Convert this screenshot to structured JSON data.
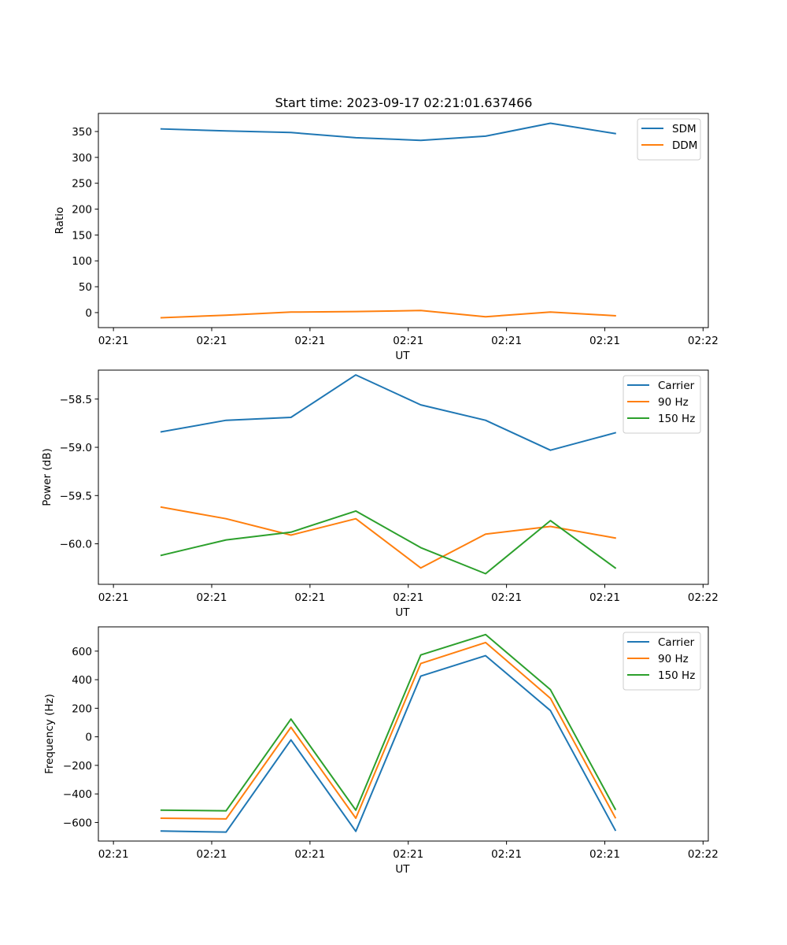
{
  "figure_title": "Start time: 2023-09-17 02:21:01.637466",
  "chart_data": [
    {
      "type": "line",
      "title": "Start time: 2023-09-17 02:21:01.637466",
      "xlabel": "UT",
      "ylabel": "Ratio",
      "xlim": [
        -0.23,
        9.08
      ],
      "ylim": [
        -29,
        385
      ],
      "x": [
        0.73,
        1.72,
        2.71,
        3.7,
        4.69,
        5.68,
        6.67,
        7.66
      ],
      "xticks": [
        0,
        1.5,
        3,
        4.5,
        6,
        7.5,
        9
      ],
      "xtick_labels": [
        "02:21",
        "02:21",
        "02:21",
        "02:21",
        "02:21",
        "02:21",
        "02:22"
      ],
      "yticks": [
        0,
        50,
        100,
        150,
        200,
        250,
        300,
        350
      ],
      "ytick_labels": [
        "0",
        "50",
        "100",
        "150",
        "200",
        "250",
        "300",
        "350"
      ],
      "legend_position": "top-right",
      "series": [
        {
          "name": "SDM",
          "color": "#1f77b4",
          "values": [
            355,
            351,
            348,
            338,
            333,
            341,
            366,
            346
          ]
        },
        {
          "name": "DDM",
          "color": "#ff7f0e",
          "values": [
            -10,
            -5,
            1,
            2,
            4,
            -8,
            1,
            -6
          ]
        }
      ]
    },
    {
      "type": "line",
      "xlabel": "UT",
      "ylabel": "Power (dB)",
      "xlim": [
        -0.23,
        9.08
      ],
      "ylim": [
        -60.42,
        -58.2
      ],
      "x": [
        0.73,
        1.72,
        2.71,
        3.7,
        4.69,
        5.68,
        6.67,
        7.66
      ],
      "xticks": [
        0,
        1.5,
        3,
        4.5,
        6,
        7.5,
        9
      ],
      "xtick_labels": [
        "02:21",
        "02:21",
        "02:21",
        "02:21",
        "02:21",
        "02:21",
        "02:22"
      ],
      "yticks": [
        -60.0,
        -59.5,
        -59.0,
        -58.5
      ],
      "ytick_labels": [
        "−60.0",
        "−59.5",
        "−59.0",
        "−58.5"
      ],
      "legend_position": "top-right",
      "series": [
        {
          "name": "Carrier",
          "color": "#1f77b4",
          "values": [
            -58.84,
            -58.72,
            -58.69,
            -58.25,
            -58.56,
            -58.72,
            -59.03,
            -58.85
          ]
        },
        {
          "name": "90 Hz",
          "color": "#ff7f0e",
          "values": [
            -59.62,
            -59.74,
            -59.91,
            -59.74,
            -60.25,
            -59.9,
            -59.82,
            -59.94
          ]
        },
        {
          "name": "150 Hz",
          "color": "#2ca02c",
          "values": [
            -60.12,
            -59.96,
            -59.88,
            -59.66,
            -60.04,
            -60.31,
            -59.76,
            -60.25
          ]
        }
      ]
    },
    {
      "type": "line",
      "xlabel": "UT",
      "ylabel": "Frequency (Hz)",
      "xlim": [
        -0.23,
        9.08
      ],
      "ylim": [
        -730,
        770
      ],
      "x": [
        0.73,
        1.72,
        2.71,
        3.7,
        4.69,
        5.68,
        6.67,
        7.66
      ],
      "xticks": [
        0,
        1.5,
        3,
        4.5,
        6,
        7.5,
        9
      ],
      "xtick_labels": [
        "02:21",
        "02:21",
        "02:21",
        "02:21",
        "02:21",
        "02:21",
        "02:22"
      ],
      "yticks": [
        -600,
        -400,
        -200,
        0,
        200,
        400,
        600
      ],
      "ytick_labels": [
        "−600",
        "−400",
        "−200",
        "0",
        "200",
        "400",
        "600"
      ],
      "legend_position": "top-right",
      "series": [
        {
          "name": "Carrier",
          "color": "#1f77b4",
          "values": [
            -660,
            -667,
            -22,
            -662,
            425,
            568,
            184,
            -654
          ]
        },
        {
          "name": "90 Hz",
          "color": "#ff7f0e",
          "values": [
            -570,
            -575,
            67,
            -570,
            513,
            660,
            270,
            -566
          ]
        },
        {
          "name": "150 Hz",
          "color": "#2ca02c",
          "values": [
            -514,
            -518,
            124,
            -514,
            573,
            716,
            330,
            -507
          ]
        }
      ]
    }
  ]
}
